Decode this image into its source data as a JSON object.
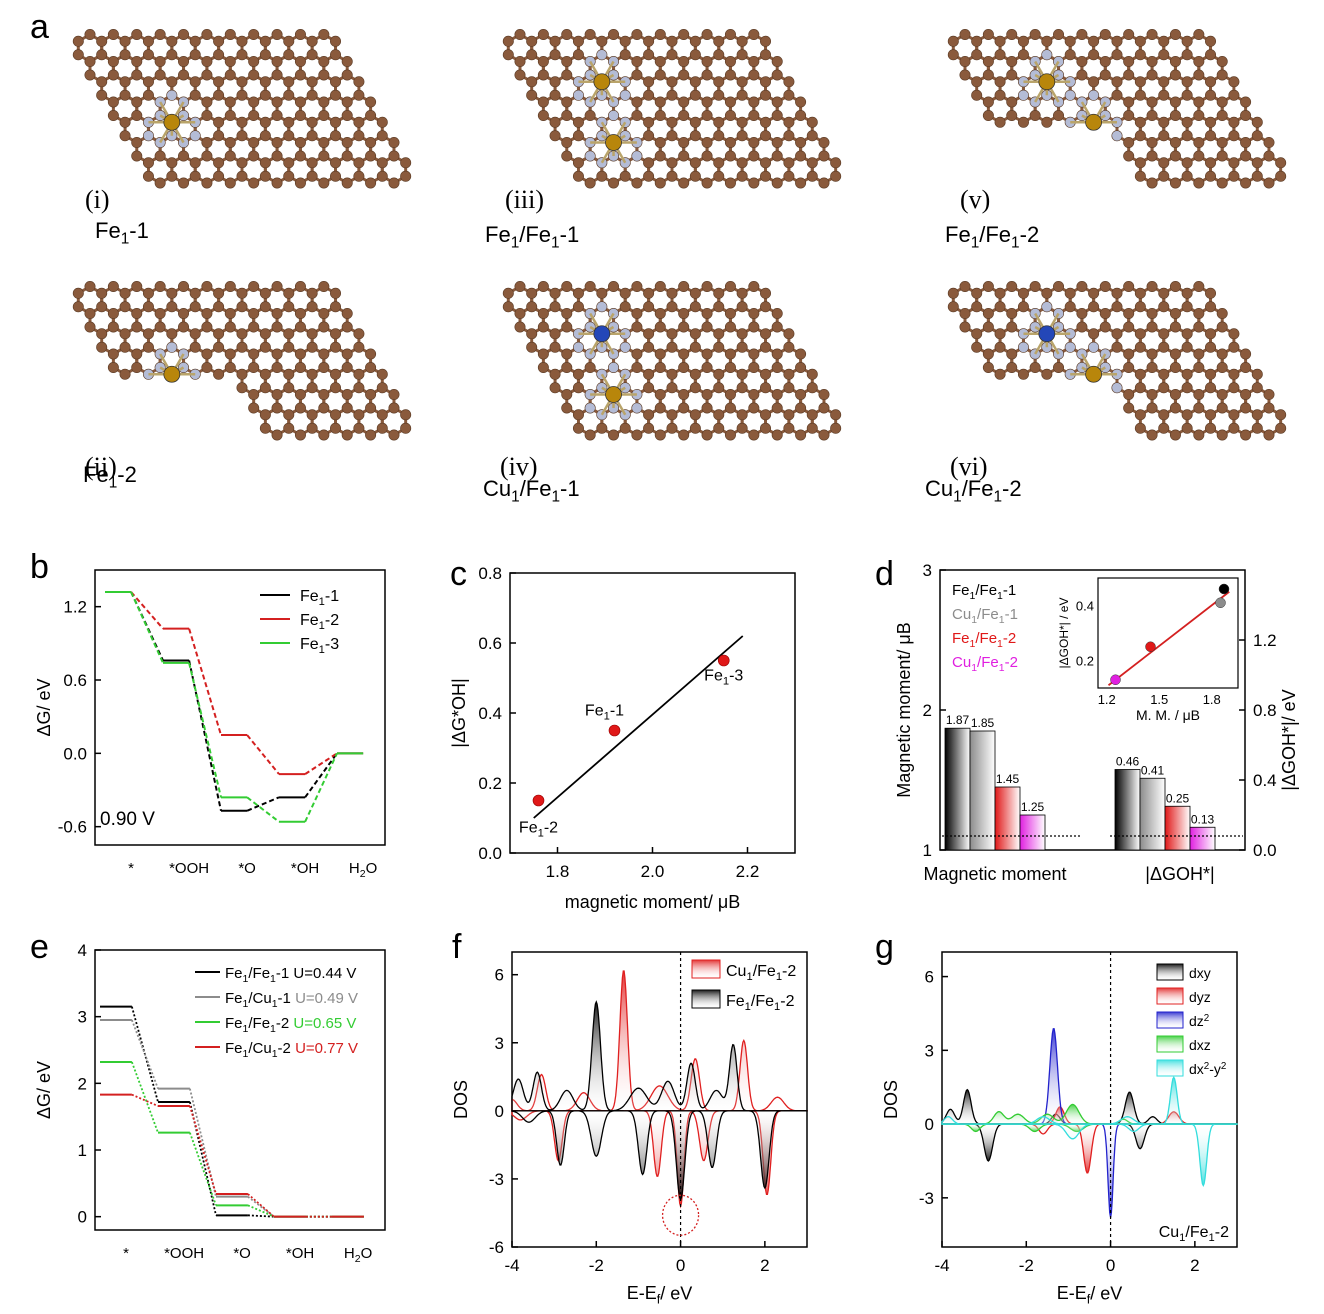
{
  "panel_a": {
    "label": "a",
    "structures": [
      {
        "roman": "(i)",
        "name": "Fe1-1",
        "base": "Fe",
        "sub": "1",
        "suffix": "-1"
      },
      {
        "roman": "(ii)",
        "name": "Fe1-2",
        "base": "Fe",
        "sub": "1",
        "suffix": "-2"
      },
      {
        "roman": "(iii)",
        "name": "Fe1/Fe1-1"
      },
      {
        "roman": "(iv)",
        "name": "Cu1/Fe1-1"
      },
      {
        "roman": "(v)",
        "name": "Fe1/Fe1-2"
      },
      {
        "roman": "(vi)",
        "name": "Cu1/Fe1-2"
      }
    ],
    "colors": {
      "carbon": "#8a5a3c",
      "nitrogen": "#b4bcd6",
      "iron": "#b8860b",
      "copper": "#2447b8"
    }
  },
  "chart_data": [
    {
      "panel": "b",
      "type": "line",
      "ylabel": "ΔG/ eV",
      "categories": [
        "*",
        "*OOH",
        "*O",
        "*OH",
        "H2O"
      ],
      "ylim": [
        -0.75,
        1.5
      ],
      "yticks": [
        1.2,
        0.6,
        0.0,
        -0.6
      ],
      "annotation": "0.90 V",
      "legend_position": "top-right",
      "series": [
        {
          "name": "Fe1-1",
          "color": "#000000",
          "values": [
            1.32,
            0.76,
            -0.47,
            -0.36,
            0.0
          ]
        },
        {
          "name": "Fe1-2",
          "color": "#d42020",
          "values": [
            1.32,
            1.02,
            0.15,
            -0.17,
            0.0
          ]
        },
        {
          "name": "Fe1-3",
          "color": "#33cc33",
          "values": [
            1.32,
            0.74,
            -0.36,
            -0.56,
            0.0
          ]
        }
      ]
    },
    {
      "panel": "c",
      "type": "scatter",
      "xlabel": "magnetic moment/ μB",
      "ylabel": "|ΔG*OH|",
      "xlim": [
        1.7,
        2.3
      ],
      "ylim": [
        0.0,
        0.8
      ],
      "xticks": [
        1.8,
        2.0,
        2.2
      ],
      "yticks": [
        0.0,
        0.2,
        0.4,
        0.6,
        0.8
      ],
      "points": [
        {
          "label": "Fe1-2",
          "x": 1.76,
          "y": 0.15
        },
        {
          "label": "Fe1-1",
          "x": 1.92,
          "y": 0.35
        },
        {
          "label": "Fe1-3",
          "x": 2.15,
          "y": 0.55
        }
      ],
      "fit_line": {
        "x": [
          1.75,
          2.19
        ],
        "y": [
          0.1,
          0.62
        ]
      }
    },
    {
      "panel": "d",
      "type": "bar",
      "groups": [
        "Magnetic moment",
        "|ΔGOH*|"
      ],
      "ylabel_left": "Magnetic moment/ μB",
      "ylabel_right": "|ΔGOH*|/ eV",
      "ylim_left": [
        1,
        3
      ],
      "ylim_right": [
        0.0,
        1.6
      ],
      "yticks_left": [
        1,
        2,
        3
      ],
      "yticks_right": [
        0.0,
        0.4,
        0.8,
        1.2
      ],
      "series": [
        {
          "name": "Fe1/Fe1-1",
          "color": "#000000",
          "magnetic_moment": 1.87,
          "dG": 0.46
        },
        {
          "name": "Cu1/Fe1-1",
          "color": "#8c8c8c",
          "magnetic_moment": 1.85,
          "dG": 0.41
        },
        {
          "name": "Fe1/Fe1-2",
          "color": "#e01818",
          "magnetic_moment": 1.45,
          "dG": 0.25
        },
        {
          "name": "Cu1/Fe1-2",
          "color": "#e020e0",
          "magnetic_moment": 1.25,
          "dG": 0.13
        }
      ],
      "inset": {
        "xlabel": "M. M. / μB",
        "ylabel": "|ΔGOH*| / eV",
        "xticks": [
          1.2,
          1.5,
          1.8
        ],
        "yticks": [
          0.2,
          0.4
        ],
        "xlim": [
          1.15,
          1.95
        ],
        "ylim": [
          0.1,
          0.5
        ],
        "points": [
          {
            "x": 1.25,
            "y": 0.13,
            "color": "#e020e0"
          },
          {
            "x": 1.45,
            "y": 0.25,
            "color": "#e01818"
          },
          {
            "x": 1.85,
            "y": 0.41,
            "color": "#8c8c8c"
          },
          {
            "x": 1.87,
            "y": 0.46,
            "color": "#000000"
          }
        ],
        "fit_line": {
          "x": [
            1.21,
            1.9
          ],
          "y": [
            0.11,
            0.45
          ]
        }
      }
    },
    {
      "panel": "e",
      "type": "line",
      "ylabel": "ΔG/ eV",
      "categories": [
        "*",
        "*OOH",
        "*O",
        "*OH",
        "H2O"
      ],
      "ylim": [
        -0.2,
        4.0
      ],
      "yticks": [
        0,
        1,
        2,
        3,
        4
      ],
      "series": [
        {
          "name": "Fe1/Fe1-1",
          "u": "U=0.44 V",
          "color": "#000000",
          "values": [
            3.15,
            1.72,
            0.02,
            0.0,
            0.0
          ]
        },
        {
          "name": "Fe1/Cu1-1",
          "u": "U=0.49 V",
          "color": "#8c8c8c",
          "values": [
            2.95,
            1.92,
            0.3,
            0.0,
            0.0
          ]
        },
        {
          "name": "Fe1/Fe1-2",
          "u": "U=0.65 V",
          "color": "#33cc33",
          "values": [
            2.32,
            1.26,
            0.17,
            0.0,
            0.0
          ]
        },
        {
          "name": "Fe1/Cu1-2",
          "u": "U=0.77 V",
          "color": "#d42020",
          "values": [
            1.83,
            1.66,
            0.34,
            0.0,
            0.0
          ]
        }
      ]
    },
    {
      "panel": "f",
      "type": "area",
      "xlabel": "E-Ef/ eV",
      "ylabel": "DOS",
      "xlim": [
        -4,
        3
      ],
      "ylim": [
        -6,
        7
      ],
      "xticks": [
        -4,
        -2,
        0,
        2
      ],
      "yticks": [
        -6,
        -3,
        0,
        3,
        6
      ],
      "series": [
        {
          "name": "Cu1/Fe1-2",
          "color": "#e02020",
          "peaks_up": [
            [
              -4.0,
              0.5,
              0.12
            ],
            [
              -3.3,
              1.6,
              0.1
            ],
            [
              -2.3,
              0.8,
              0.15
            ],
            [
              -1.35,
              6.2,
              0.09
            ],
            [
              -0.5,
              1.1,
              0.2
            ],
            [
              0.35,
              2.3,
              0.1
            ],
            [
              1.5,
              3.1,
              0.09
            ],
            [
              2.3,
              0.6,
              0.15
            ]
          ],
          "peaks_down": [
            [
              -3.8,
              0.4,
              0.15
            ],
            [
              -2.9,
              2.2,
              0.09
            ],
            [
              -0.55,
              2.9,
              0.09
            ],
            [
              0.0,
              4.2,
              0.08
            ],
            [
              0.55,
              2.2,
              0.1
            ],
            [
              2.05,
              3.7,
              0.09
            ]
          ]
        },
        {
          "name": "Fe1/Fe1-2",
          "color": "#000000",
          "peaks_up": [
            [
              -3.85,
              1.4,
              0.12
            ],
            [
              -3.4,
              1.7,
              0.1
            ],
            [
              -2.7,
              0.9,
              0.15
            ],
            [
              -2.0,
              4.8,
              0.1
            ],
            [
              -1.0,
              1.0,
              0.2
            ],
            [
              -0.3,
              1.3,
              0.15
            ],
            [
              0.25,
              2.1,
              0.1
            ],
            [
              0.85,
              0.9,
              0.15
            ],
            [
              1.25,
              2.9,
              0.09
            ]
          ],
          "peaks_down": [
            [
              -3.6,
              0.5,
              0.15
            ],
            [
              -2.85,
              2.4,
              0.09
            ],
            [
              -2.0,
              2.0,
              0.12
            ],
            [
              -0.9,
              2.8,
              0.1
            ],
            [
              0.0,
              3.9,
              0.1
            ],
            [
              0.75,
              2.5,
              0.1
            ],
            [
              2.0,
              3.4,
              0.1
            ]
          ]
        }
      ],
      "highlight": "circle at E-Ef = 0"
    },
    {
      "panel": "g",
      "type": "area",
      "xlabel": "E-Ef/ eV",
      "ylabel": "DOS",
      "xlim": [
        -4,
        3
      ],
      "ylim": [
        -5,
        7
      ],
      "xticks": [
        -4,
        -2,
        0,
        2
      ],
      "yticks": [
        -3,
        0,
        3,
        6
      ],
      "annotation": "Cu1/Fe1-2",
      "series": [
        {
          "name": "dxy",
          "color": "#000000",
          "peaks_up": [
            [
              -3.8,
              0.6,
              0.1
            ],
            [
              -3.4,
              1.4,
              0.09
            ],
            [
              -1.3,
              0.4,
              0.1
            ],
            [
              0.45,
              1.3,
              0.1
            ],
            [
              1.0,
              0.3,
              0.1
            ]
          ],
          "peaks_down": [
            [
              -2.9,
              1.5,
              0.1
            ],
            [
              0.7,
              1.0,
              0.1
            ]
          ]
        },
        {
          "name": "dyz",
          "color": "#e02020",
          "peaks_up": [
            [
              -1.2,
              0.7,
              0.1
            ],
            [
              1.5,
              0.5,
              0.12
            ]
          ],
          "peaks_down": [
            [
              -0.55,
              2.0,
              0.09
            ],
            [
              -1.6,
              0.4,
              0.1
            ]
          ]
        },
        {
          "name": "dz2",
          "color": "#2222cc",
          "peaks_up": [
            [
              -1.35,
              3.9,
              0.09
            ]
          ],
          "peaks_down": [
            [
              0.0,
              3.8,
              0.06
            ]
          ]
        },
        {
          "name": "dxz",
          "color": "#33cc33",
          "peaks_up": [
            [
              -2.65,
              0.5,
              0.12
            ],
            [
              -2.2,
              0.4,
              0.15
            ],
            [
              -1.5,
              0.4,
              0.15
            ],
            [
              -0.9,
              0.8,
              0.15
            ],
            [
              0.3,
              0.2,
              0.1
            ]
          ],
          "peaks_down": [
            [
              -3.2,
              0.3,
              0.1
            ],
            [
              -1.8,
              0.3,
              0.12
            ],
            [
              -0.8,
              0.3,
              0.15
            ]
          ]
        },
        {
          "name": "dx2-y2",
          "color": "#33dddd",
          "peaks_up": [
            [
              -3.85,
              0.3,
              0.1
            ],
            [
              -1.6,
              0.3,
              0.15
            ],
            [
              0.4,
              0.3,
              0.15
            ],
            [
              1.5,
              1.9,
              0.08
            ]
          ],
          "peaks_down": [
            [
              -0.9,
              0.6,
              0.15
            ],
            [
              0.55,
              0.3,
              0.12
            ],
            [
              2.2,
              2.5,
              0.08
            ]
          ]
        }
      ]
    }
  ]
}
